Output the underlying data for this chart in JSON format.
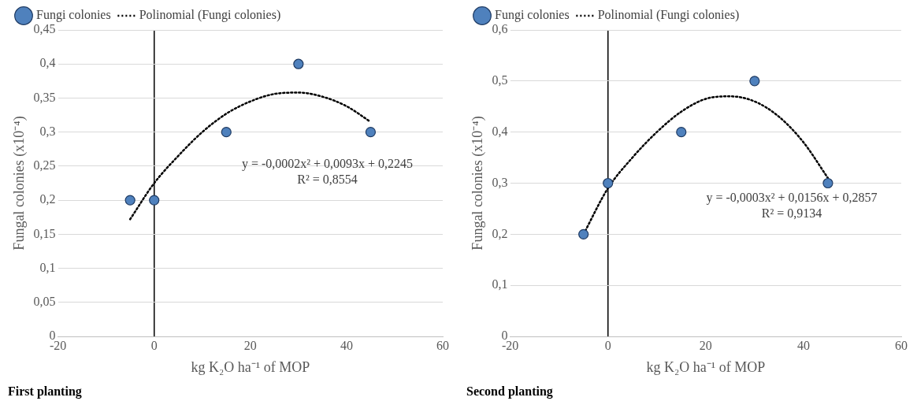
{
  "chart_data": [
    {
      "type": "scatter",
      "title": "First planting",
      "xlabel": "kg K₂O ha⁻¹ of MOP",
      "ylabel": "Fungal colonies (x10⁻⁴)",
      "xlim": [
        -20,
        60
      ],
      "xticks": [
        -20,
        0,
        20,
        40,
        60
      ],
      "ylim": [
        0,
        0.45
      ],
      "yticks": [
        {
          "value": 0,
          "label": "0"
        },
        {
          "value": 0.05,
          "label": "0,05"
        },
        {
          "value": 0.1,
          "label": "0,1"
        },
        {
          "value": 0.15,
          "label": "0,15"
        },
        {
          "value": 0.2,
          "label": "0,2"
        },
        {
          "value": 0.25,
          "label": "0,25"
        },
        {
          "value": 0.3,
          "label": "0,3"
        },
        {
          "value": 0.35,
          "label": "0,35"
        },
        {
          "value": 0.4,
          "label": "0,4"
        },
        {
          "value": 0.45,
          "label": "0,45"
        }
      ],
      "grid": "y",
      "legend": "top",
      "annotations": [
        "y = -0,0002x² + 0,0093x + 0,2245",
        "R² = 0,8554"
      ],
      "series": [
        {
          "name": "Fungi colonies",
          "type": "scatter",
          "marker": "circle",
          "color": "#4f81bd",
          "x": [
            -5,
            0,
            15,
            30,
            45
          ],
          "values": [
            0.2,
            0.2,
            0.3,
            0.4,
            0.3
          ]
        },
        {
          "name": "Polinomial (Fungi colonies)",
          "type": "line",
          "marker": "none",
          "line_style": "dotted",
          "color": "#000000",
          "x": [
            -5,
            0,
            5,
            10,
            15,
            20,
            25,
            30,
            35,
            40,
            45
          ],
          "values": [
            0.172,
            0.225,
            0.265,
            0.3,
            0.327,
            0.345,
            0.356,
            0.358,
            0.352,
            0.338,
            0.315
          ]
        }
      ]
    },
    {
      "type": "scatter",
      "title": "Second planting",
      "xlabel": "kg K₂O ha⁻¹ of MOP",
      "ylabel": "Fungal colonies (x10⁻⁴)",
      "xlim": [
        -20,
        60
      ],
      "xticks": [
        -20,
        0,
        20,
        40,
        60
      ],
      "ylim": [
        0,
        0.6
      ],
      "yticks": [
        {
          "value": 0,
          "label": "0"
        },
        {
          "value": 0.1,
          "label": "0,1"
        },
        {
          "value": 0.2,
          "label": "0,2"
        },
        {
          "value": 0.3,
          "label": "0,3"
        },
        {
          "value": 0.4,
          "label": "0,4"
        },
        {
          "value": 0.5,
          "label": "0,5"
        },
        {
          "value": 0.6,
          "label": "0,6"
        }
      ],
      "grid": "y",
      "legend": "top",
      "annotations": [
        "y = -0,0003x² + 0,0156x + 0,2857",
        "R² = 0,9134"
      ],
      "series": [
        {
          "name": "Fungi colonies",
          "type": "scatter",
          "marker": "circle",
          "color": "#4f81bd",
          "x": [
            -5,
            0,
            15,
            30,
            45
          ],
          "values": [
            0.2,
            0.3,
            0.4,
            0.5,
            0.3
          ]
        },
        {
          "name": "Polinomial (Fungi colonies)",
          "type": "line",
          "marker": "none",
          "line_style": "dotted",
          "color": "#000000",
          "x": [
            -5,
            0,
            5,
            10,
            15,
            20,
            25,
            30,
            35,
            40,
            45
          ],
          "values": [
            0.2,
            0.29,
            0.35,
            0.4,
            0.44,
            0.465,
            0.47,
            0.46,
            0.43,
            0.38,
            0.31
          ]
        }
      ]
    }
  ]
}
